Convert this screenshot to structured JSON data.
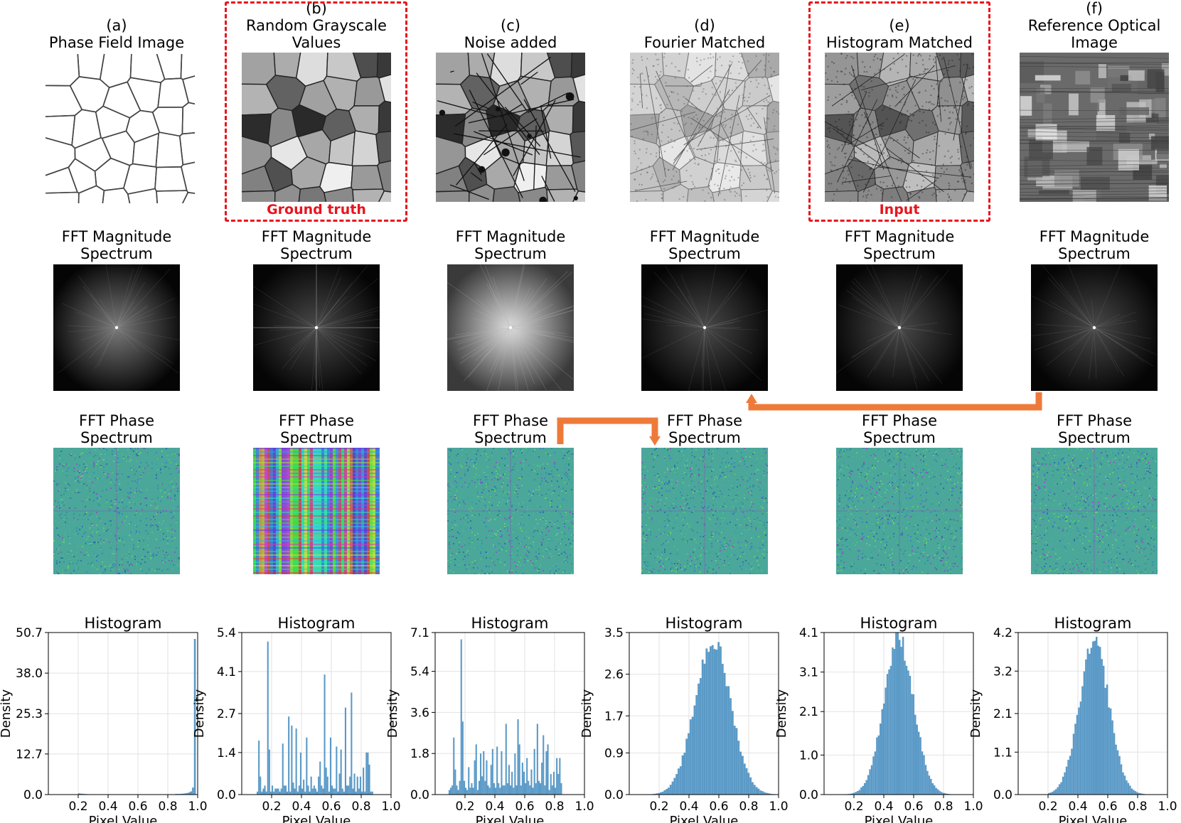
{
  "columns": [
    {
      "letter": "(a)",
      "title_lines": [
        "Phase Field Image"
      ]
    },
    {
      "letter": "(b)",
      "title_lines": [
        "Random Grayscale",
        "Values"
      ]
    },
    {
      "letter": "(c)",
      "title_lines": [
        "Noise added"
      ]
    },
    {
      "letter": "(d)",
      "title_lines": [
        "Fourier Matched"
      ]
    },
    {
      "letter": "(e)",
      "title_lines": [
        "Histogram Matched"
      ]
    },
    {
      "letter": "(f)",
      "title_lines": [
        "Reference Optical",
        "Image"
      ]
    }
  ],
  "highlight_labels": {
    "ground_truth": "Ground  truth",
    "input": "Input"
  },
  "magnitude_title": [
    "FFT Magnitude",
    "Spectrum"
  ],
  "phase_title": [
    "FFT Phase",
    "Spectrum"
  ],
  "colors": {
    "highlight": "#e8141c",
    "arrow": "#ee7a3a",
    "bar": "#5b9ac7",
    "grid": "#e2e2e2"
  },
  "chart_data": [
    {
      "type": "bar",
      "title": "Histogram",
      "xlabel": "Pixel Value",
      "ylabel": "Density",
      "xlim": [
        0.0,
        1.0
      ],
      "xticks": [
        "0.2",
        "0.4",
        "0.6",
        "0.8",
        "1.0"
      ],
      "ylim": [
        0.0,
        50.7
      ],
      "yticks": [
        "0.0",
        "12.7",
        "25.3",
        "38.0",
        "50.7"
      ],
      "bin_start": 0.0,
      "bin_width": 0.0125,
      "values": [
        0,
        0,
        0,
        0,
        0,
        0,
        0,
        0,
        0,
        0,
        0,
        0,
        0,
        0,
        0,
        0,
        0.4,
        0.3,
        0.25,
        0.2,
        0.15,
        0.12,
        0.1,
        0.1,
        0.1,
        0.1,
        0.1,
        0.1,
        0.1,
        0.1,
        0.1,
        0.1,
        0.1,
        0.1,
        0.1,
        0.1,
        0.1,
        0.1,
        0.1,
        0.1,
        0.1,
        0.1,
        0.1,
        0.1,
        0.1,
        0.1,
        0.1,
        0.1,
        0.1,
        0.1,
        0.1,
        0.1,
        0.1,
        0.1,
        0.1,
        0.1,
        0.1,
        0.1,
        0.1,
        0.1,
        0.1,
        0.1,
        0.1,
        0.1,
        0.1,
        0.1,
        0.1,
        0.1,
        0.2,
        0.2,
        0.2,
        0.25,
        0.3,
        0.4,
        0.5,
        0.7,
        1.0,
        2.2,
        48.7,
        0
      ]
    },
    {
      "type": "bar",
      "title": "Histogram",
      "xlabel": "Pixel Value",
      "ylabel": "Density",
      "xlim": [
        0.0,
        1.0
      ],
      "xticks": [
        "0.2",
        "0.4",
        "0.6",
        "0.8",
        "1.0"
      ],
      "ylim": [
        0.0,
        5.4
      ],
      "yticks": [
        "0.0",
        "1.4",
        "2.7",
        "4.1",
        "5.4"
      ],
      "bin_start": 0.08,
      "bin_width": 0.01,
      "values": [
        0,
        0,
        0.1,
        1.8,
        0.6,
        0.1,
        0.2,
        0.3,
        0.1,
        5.1,
        1.5,
        0.1,
        0.3,
        0.1,
        0.2,
        0.2,
        0.2,
        0.1,
        0.2,
        1.7,
        0.3,
        0.3,
        0.1,
        2.6,
        0.1,
        2.3,
        0.4,
        0.2,
        2.2,
        0.1,
        0.3,
        1.4,
        0.2,
        0.5,
        0.1,
        1.9,
        0.3,
        0.1,
        0.6,
        0.2,
        0.3,
        0.2,
        0.1,
        0.6,
        1.1,
        0.3,
        0.2,
        4.0,
        0.9,
        0.6,
        0.1,
        1.9,
        0.3,
        0.2,
        0.2,
        1.6,
        0.1,
        0.7,
        1.5,
        0.2,
        0.1,
        2.9,
        0.3,
        0.3,
        0.6,
        3.4,
        0.2,
        0.7,
        0.1,
        0.6,
        0.2,
        0.6,
        0.1,
        0.9,
        0.1,
        1.4,
        1.4,
        1.0,
        0.1,
        0.1,
        0,
        0,
        0,
        0
      ]
    },
    {
      "type": "bar",
      "title": "Histogram",
      "xlabel": "Pixel Value",
      "ylabel": "Density",
      "xlim": [
        0.0,
        1.0
      ],
      "xticks": [
        "0.2",
        "0.4",
        "0.6",
        "0.8",
        "1.0"
      ],
      "ylim": [
        0.0,
        7.1
      ],
      "yticks": [
        "0.0",
        "1.8",
        "3.6",
        "5.4",
        "7.1"
      ],
      "bin_start": 0.08,
      "bin_width": 0.01,
      "values": [
        0,
        0.2,
        0.3,
        0.4,
        2.5,
        1.1,
        0.4,
        0.2,
        0.6,
        6.8,
        3.2,
        0.6,
        0.3,
        0.2,
        1.2,
        0.3,
        0.5,
        0.3,
        1.5,
        2.2,
        0.2,
        0.6,
        1.8,
        0.8,
        1.9,
        0.6,
        1.5,
        0.4,
        0.3,
        1.3,
        2.0,
        0.5,
        0.3,
        2.1,
        0.5,
        0.3,
        1.9,
        0.4,
        0.4,
        3.1,
        0.5,
        1.3,
        0.4,
        1.0,
        0.3,
        1.8,
        0.4,
        3.3,
        2.2,
        0.4,
        1.4,
        1.0,
        0.5,
        1.6,
        0.6,
        0.4,
        1.1,
        0.3,
        2.0,
        0.5,
        3.1,
        0.6,
        0.5,
        1.4,
        2.6,
        0.4,
        1.9,
        2.2,
        0.2,
        0.9,
        0.4,
        1.0,
        0.3,
        1.6,
        0.9,
        1.6,
        0.5,
        0,
        0,
        0,
        0,
        0
      ]
    },
    {
      "type": "bar",
      "title": "Histogram",
      "xlabel": "Pixel Value",
      "ylabel": "Density",
      "xlim": [
        0.0,
        1.0
      ],
      "xticks": [
        "0.2",
        "0.4",
        "0.6",
        "0.8",
        "1.0"
      ],
      "ylim": [
        0.0,
        3.5
      ],
      "yticks": [
        "0.0",
        "0.9",
        "1.7",
        "2.6",
        "3.5"
      ],
      "hist_mean": 0.56,
      "hist_sd": 0.12,
      "hist_peak": 3.3,
      "hist_range": [
        0.15,
        0.98
      ],
      "hist_bins": 62
    },
    {
      "type": "bar",
      "title": "Histogram",
      "xlabel": "Pixel Value",
      "ylabel": "Density",
      "xlim": [
        0.0,
        1.0
      ],
      "xticks": [
        "0.2",
        "0.4",
        "0.6",
        "0.8",
        "1.0"
      ],
      "ylim": [
        0.0,
        4.1
      ],
      "yticks": [
        "0.0",
        "1.0",
        "2.1",
        "3.1",
        "4.1"
      ],
      "hist_mean": 0.5,
      "hist_sd": 0.1,
      "hist_peak": 3.95,
      "hist_range": [
        0.15,
        0.85
      ],
      "hist_bins": 60
    },
    {
      "type": "bar",
      "title": "Histogram",
      "xlabel": "Pixel Value",
      "ylabel": "Density",
      "xlim": [
        0.0,
        1.0
      ],
      "xticks": [
        "0.2",
        "0.4",
        "0.6",
        "0.8",
        "1.0"
      ],
      "ylim": [
        0.0,
        4.2
      ],
      "yticks": [
        "0.0",
        "1.1",
        "2.1",
        "3.2",
        "4.2"
      ],
      "hist_mean": 0.51,
      "hist_sd": 0.1,
      "hist_peak": 3.9,
      "hist_range": [
        0.2,
        0.85
      ],
      "hist_bins": 55
    }
  ]
}
